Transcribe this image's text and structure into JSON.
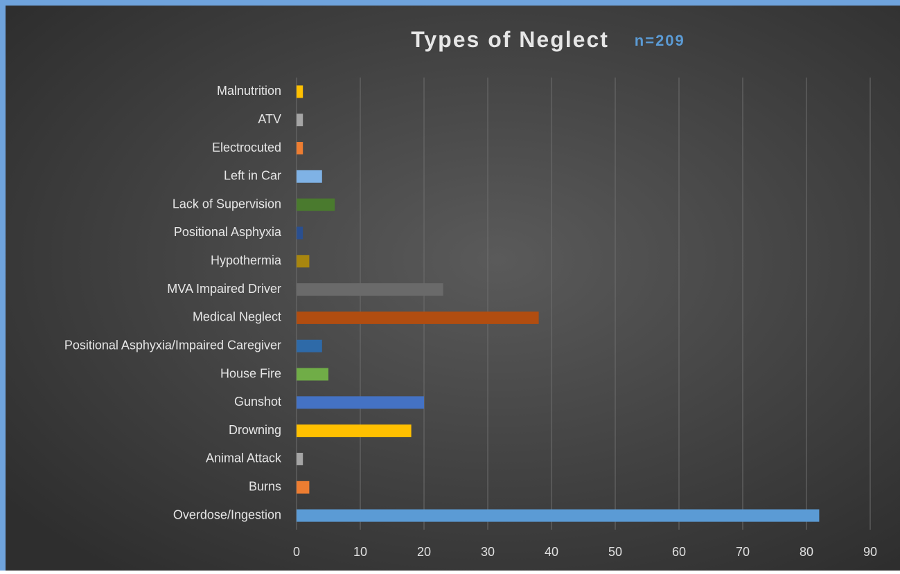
{
  "chart_data": {
    "type": "hbar",
    "title": "Types of Neglect",
    "subtitle": "n=209",
    "categories": [
      "Malnutrition",
      "ATV",
      "Electrocuted",
      "Left in Car",
      "Lack of Supervision",
      "Positional Asphyxia",
      "Hypothermia",
      "MVA Impaired Driver",
      "Medical Neglect",
      "Positional Asphyxia/Impaired Caregiver",
      "House Fire",
      "Gunshot",
      "Drowning",
      "Animal Attack",
      "Burns",
      "Overdose/Ingestion"
    ],
    "values": [
      1,
      1,
      1,
      4,
      6,
      1,
      2,
      23,
      38,
      4,
      5,
      20,
      18,
      1,
      2,
      82
    ],
    "colors": [
      "#ffc000",
      "#a5a5a5",
      "#ed7d31",
      "#7fb2e5",
      "#4a7a2e",
      "#2a4f8f",
      "#a8860f",
      "#6a6a6a",
      "#b14d10",
      "#2e6aa8",
      "#70ad47",
      "#4472c4",
      "#ffc000",
      "#a5a5a5",
      "#ed7d31",
      "#5b9bd5"
    ],
    "xlim": [
      0,
      90
    ],
    "xticks": [
      0,
      10,
      20,
      30,
      40,
      50,
      60,
      70,
      80,
      90
    ],
    "grid": true
  }
}
